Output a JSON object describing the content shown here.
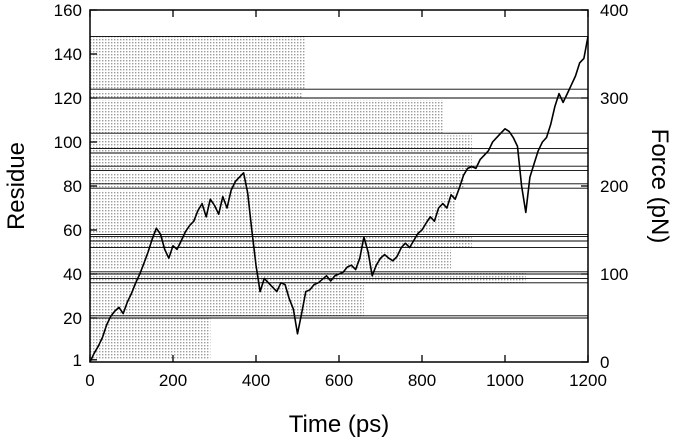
{
  "chart_data": {
    "type": "line",
    "title": "",
    "xlabel": "Time (ps)",
    "ylabel": "Residue",
    "y2label": "Force (pN)",
    "xlim": [
      0,
      1200
    ],
    "ylim": [
      0,
      160
    ],
    "y2lim": [
      0,
      400
    ],
    "x_ticks": [
      0,
      200,
      400,
      600,
      800,
      1000,
      1200
    ],
    "y_ticks": [
      1,
      20,
      40,
      60,
      80,
      100,
      120,
      140,
      160
    ],
    "y2_ticks": [
      0,
      100,
      200,
      300,
      400
    ],
    "grid": false,
    "legend": "none",
    "reference_lines_residue": [
      20,
      21,
      36,
      38,
      40,
      41,
      52,
      55,
      57,
      58,
      79,
      81,
      87,
      89,
      95,
      97,
      104,
      120,
      124,
      148
    ],
    "residue_bands": [
      {
        "from": 1,
        "to": 20,
        "x_end": 290
      },
      {
        "from": 21,
        "to": 35,
        "x_end": 660
      },
      {
        "from": 36,
        "to": 41,
        "x_end": 1050
      },
      {
        "from": 42,
        "to": 51,
        "x_end": 870
      },
      {
        "from": 52,
        "to": 57,
        "x_end": 920
      },
      {
        "from": 58,
        "to": 78,
        "x_end": 880
      },
      {
        "from": 79,
        "to": 86,
        "x_end": 900
      },
      {
        "from": 87,
        "to": 94,
        "x_end": 920
      },
      {
        "from": 95,
        "to": 103,
        "x_end": 920
      },
      {
        "from": 104,
        "to": 119,
        "x_end": 850
      },
      {
        "from": 120,
        "to": 123,
        "x_end": 510
      },
      {
        "from": 124,
        "to": 148,
        "x_end": 520
      }
    ],
    "series": [
      {
        "color": "#000000",
        "axis": "right",
        "x": [
          0,
          10,
          20,
          30,
          40,
          50,
          60,
          70,
          80,
          90,
          100,
          110,
          120,
          130,
          140,
          150,
          160,
          170,
          180,
          190,
          200,
          210,
          220,
          230,
          240,
          250,
          260,
          270,
          280,
          290,
          300,
          310,
          320,
          330,
          340,
          350,
          360,
          370,
          380,
          390,
          400,
          410,
          420,
          430,
          440,
          450,
          460,
          470,
          480,
          490,
          500,
          510,
          520,
          530,
          540,
          550,
          560,
          570,
          580,
          590,
          600,
          610,
          620,
          630,
          640,
          650,
          660,
          670,
          680,
          690,
          700,
          710,
          720,
          730,
          740,
          750,
          760,
          770,
          780,
          790,
          800,
          810,
          820,
          830,
          840,
          850,
          860,
          870,
          880,
          890,
          900,
          910,
          920,
          930,
          940,
          950,
          960,
          970,
          980,
          990,
          1000,
          1010,
          1020,
          1030,
          1040,
          1050,
          1060,
          1070,
          1080,
          1090,
          1100,
          1110,
          1120,
          1130,
          1140,
          1150,
          1160,
          1170,
          1180,
          1190,
          1200
        ],
        "values": [
          0,
          10,
          18,
          28,
          42,
          52,
          58,
          62,
          55,
          68,
          78,
          90,
          100,
          112,
          125,
          140,
          152,
          145,
          128,
          118,
          132,
          128,
          138,
          148,
          155,
          160,
          172,
          180,
          165,
          185,
          178,
          168,
          188,
          175,
          195,
          205,
          210,
          215,
          192,
          150,
          110,
          80,
          95,
          90,
          85,
          80,
          90,
          88,
          72,
          60,
          32,
          55,
          80,
          82,
          88,
          90,
          94,
          98,
          92,
          98,
          100,
          102,
          108,
          110,
          105,
          118,
          142,
          125,
          98,
          110,
          118,
          122,
          118,
          115,
          120,
          130,
          135,
          130,
          138,
          146,
          150,
          158,
          165,
          160,
          175,
          180,
          175,
          190,
          185,
          198,
          212,
          220,
          222,
          220,
          230,
          235,
          240,
          250,
          255,
          260,
          265,
          262,
          255,
          245,
          200,
          170,
          210,
          225,
          240,
          250,
          255,
          270,
          290,
          305,
          295,
          305,
          315,
          325,
          340,
          345,
          370
        ]
      }
    ]
  }
}
